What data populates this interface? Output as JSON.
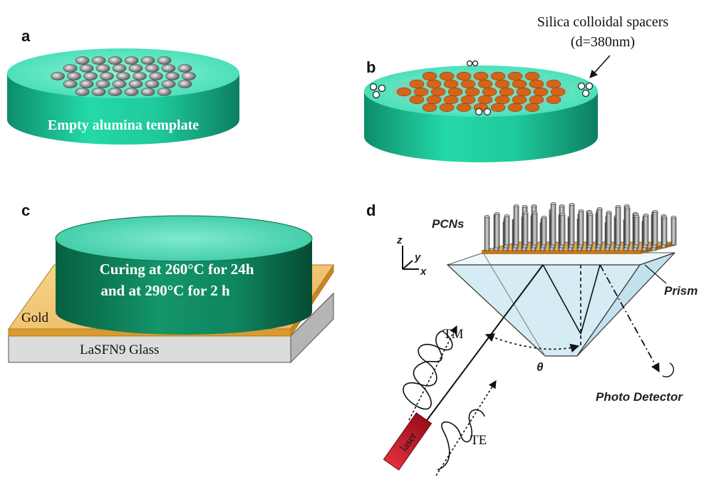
{
  "panels": {
    "a": {
      "letter": "a",
      "template_label": "Empty alumina template"
    },
    "b": {
      "letter": "b",
      "spacer_label_line1": "Silica colloidal spacers",
      "spacer_label_line2": "(d=380nm)"
    },
    "c": {
      "letter": "c",
      "curing_line1": "Curing at 260°C for 24h",
      "curing_line2": "and  at 290°C for 2 h",
      "gold_label": "Gold",
      "glass_label": "LaSFN9 Glass"
    },
    "d": {
      "letter": "d",
      "pcns_label": "PCNs",
      "axis_z": "z",
      "axis_y": "y",
      "axis_x": "x",
      "prism_label": "Prism",
      "detector_label": "Photo Detector",
      "tm_label": "TM",
      "te_label": "TE",
      "theta_label": "θ",
      "laser_label": "laser"
    }
  },
  "colors": {
    "template_teal": "#1fc69a",
    "template_top": "#4fe8c2",
    "pore_gray": "#8a8a8a",
    "filled_orange": "#d2651a",
    "gold": "#f1c46a",
    "glass_gray": "#d6d6d6",
    "laser_red": "#c8192a",
    "prism_blue": "#d6eef6"
  }
}
